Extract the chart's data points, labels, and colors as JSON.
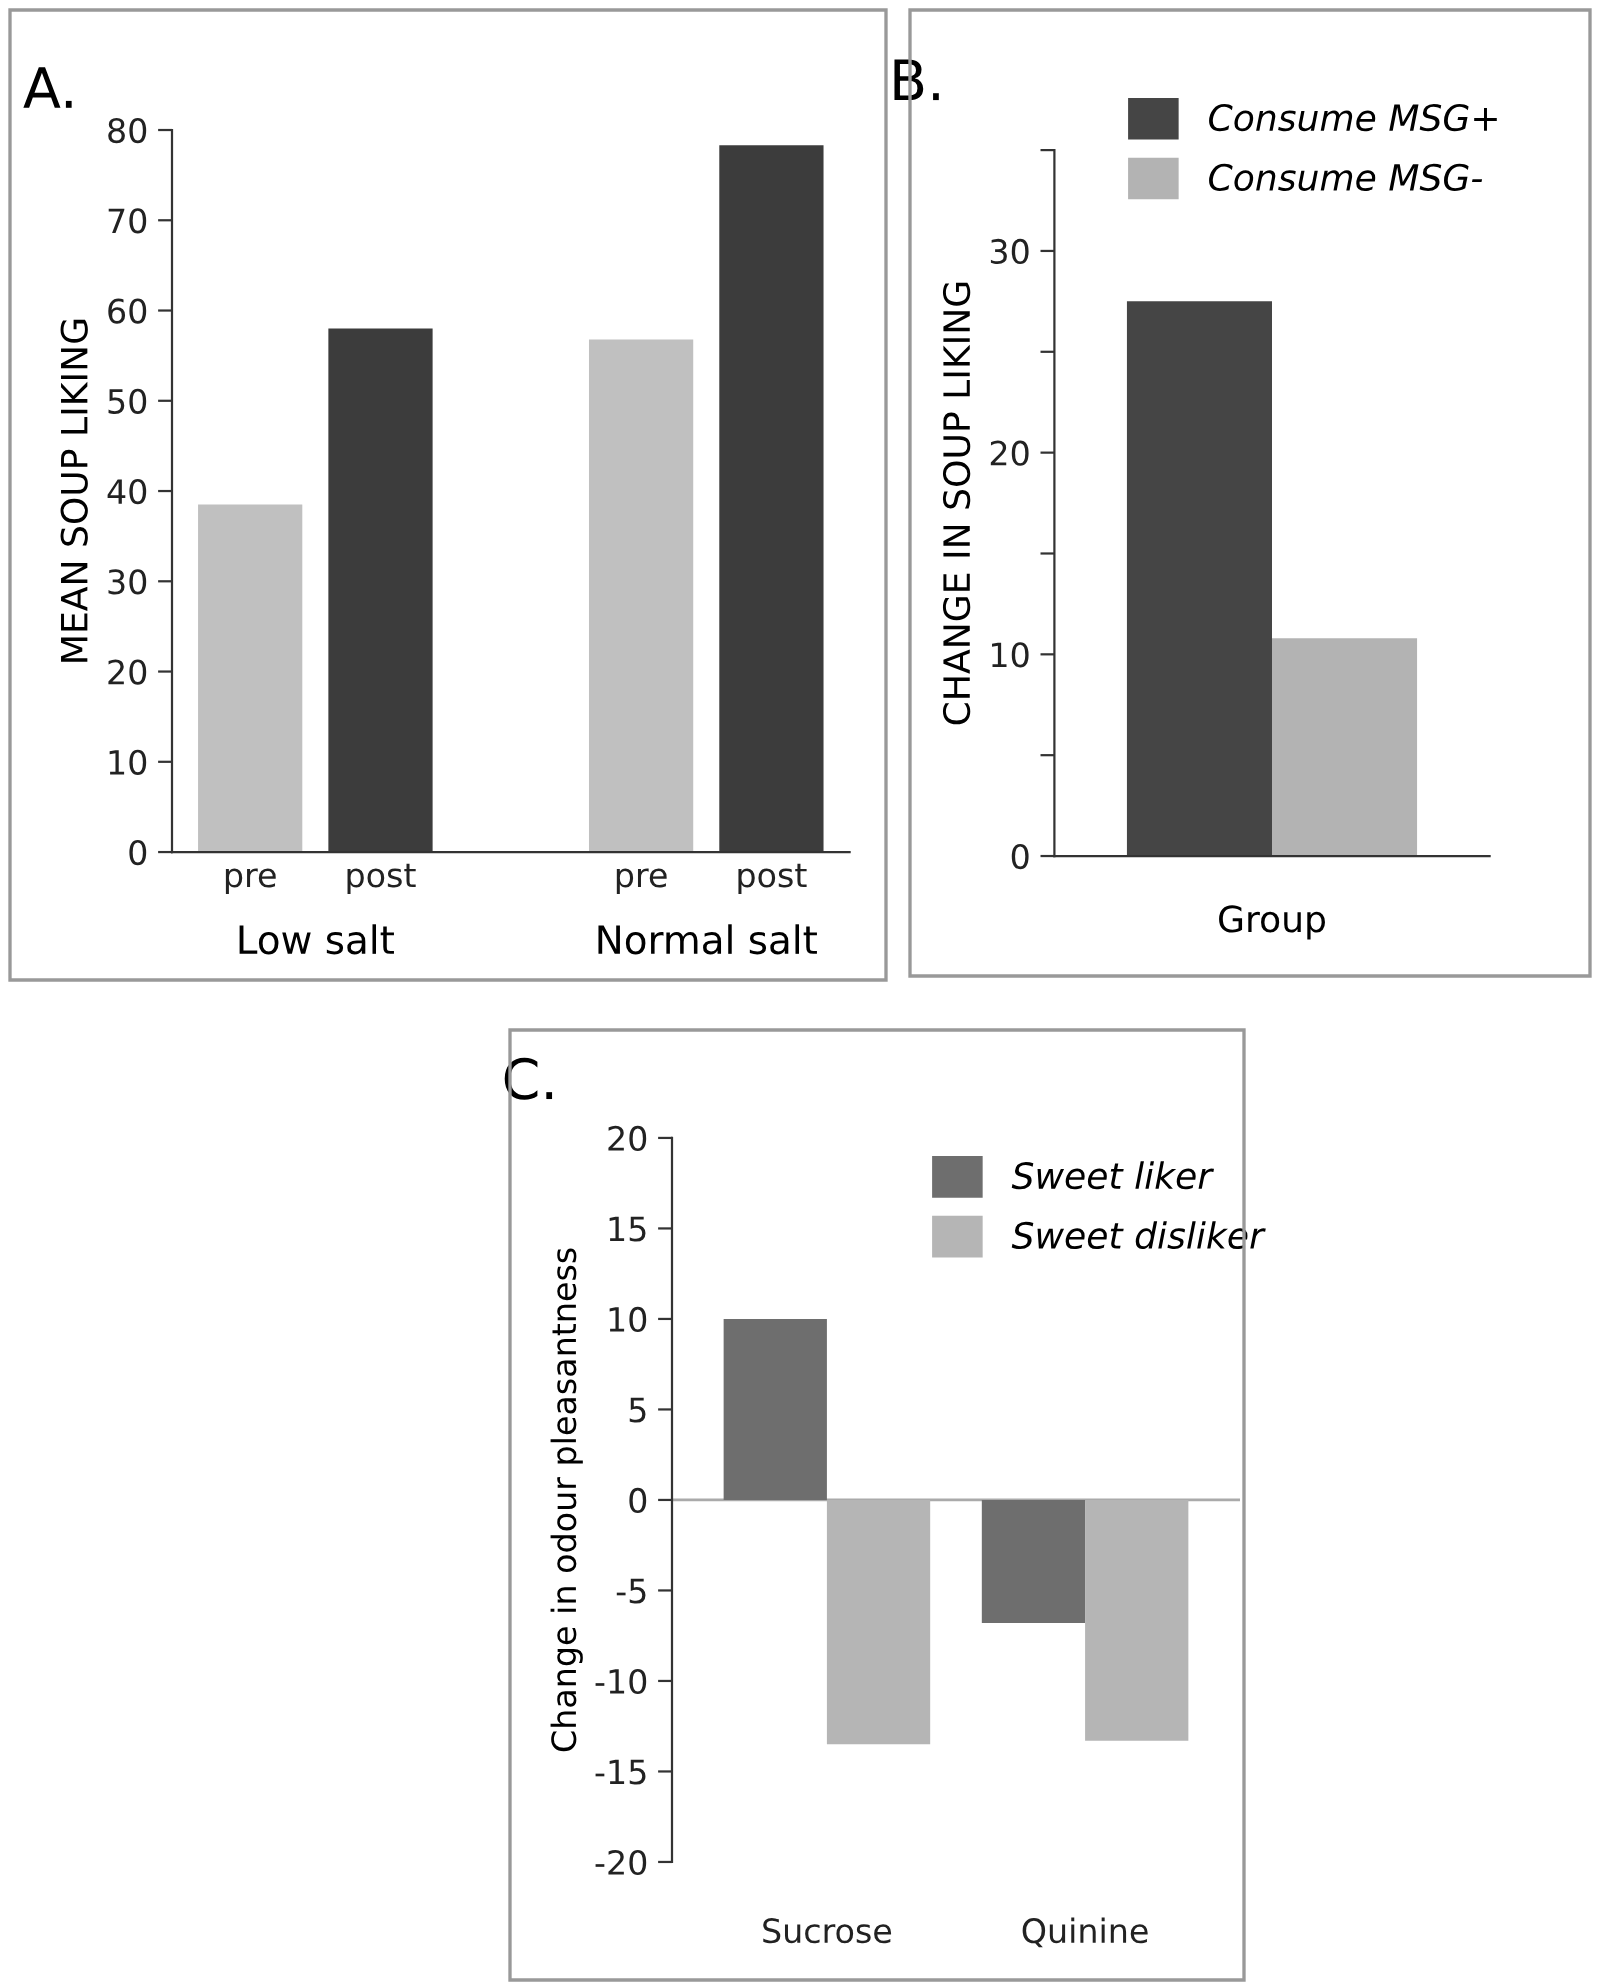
{
  "chart_data": [
    {
      "type": "bar",
      "title": "A.",
      "ylabel": "MEAN SOUP LIKING",
      "categories": [
        "pre",
        "post",
        null,
        "pre",
        "post"
      ],
      "values": [
        38.5,
        58,
        null,
        56.8,
        78.3
      ],
      "colors": [
        "#c0c0c0",
        "#3c3c3c",
        "#ffffff",
        "#c0c0c0",
        "#3c3c3c"
      ],
      "ylim": [
        0,
        80
      ],
      "yticks": [
        0,
        10,
        20,
        30,
        40,
        50,
        60,
        70,
        80
      ],
      "grid": false,
      "legend": false,
      "annotations": [
        "Low salt",
        "Normal salt"
      ]
    },
    {
      "type": "bar",
      "title": "B.",
      "ylabel": "CHANGE IN SOUP LIKING",
      "xlabel": "Group",
      "categories": [
        null
      ],
      "series": [
        {
          "name": "Consume MSG+",
          "color": "#454545",
          "values": [
            27.5
          ]
        },
        {
          "name": "Consume MSG-",
          "color": "#b3b3b3",
          "values": [
            10.8
          ]
        }
      ],
      "ylim": [
        0,
        35
      ],
      "yticks": [
        0,
        {
          "value": 5,
          "label": null
        },
        10,
        {
          "value": 15,
          "label": null
        },
        20,
        {
          "value": 25,
          "label": null
        },
        30,
        {
          "value": 35,
          "label": null
        }
      ],
      "grid": false,
      "legend": "top right"
    },
    {
      "type": "bar",
      "title": "C.",
      "ylabel": "Change in odour pleasantness",
      "categories": [
        "Sucrose",
        "Quinine"
      ],
      "series": [
        {
          "name": "Sweet liker",
          "color": "#6e6e6e",
          "values": [
            10,
            -6.8
          ]
        },
        {
          "name": "Sweet disliker",
          "color": "#b5b5b5",
          "values": [
            -13.5,
            -13.3
          ]
        }
      ],
      "ylim": [
        -20,
        20
      ],
      "yticks": [
        -20,
        -15,
        -10,
        -5,
        0,
        5,
        10,
        15,
        20
      ],
      "ref_lines": [
        {
          "axis": "y",
          "value": 0,
          "color": "#aaaaaa"
        }
      ],
      "legend": "top"
    }
  ]
}
